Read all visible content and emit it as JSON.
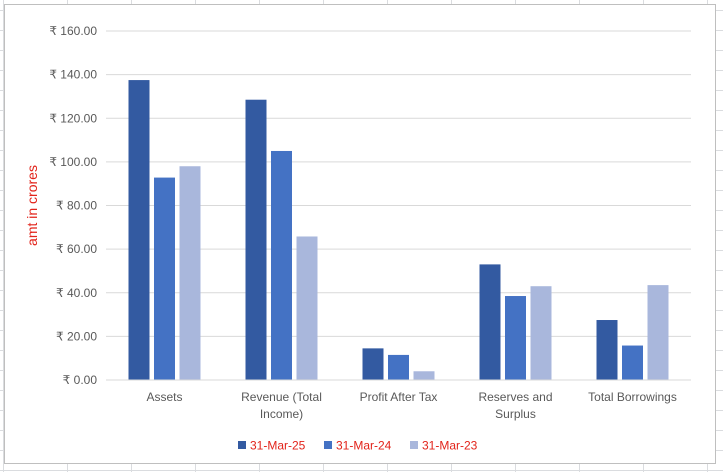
{
  "chart_data": {
    "type": "bar",
    "title": "",
    "xlabel": "",
    "ylabel": "amt in crores",
    "ylim": [
      0,
      160
    ],
    "y_ticks": [
      "₹ 0.00",
      "₹ 20.00",
      "₹ 40.00",
      "₹ 60.00",
      "₹ 80.00",
      "₹ 100.00",
      "₹ 120.00",
      "₹ 140.00",
      "₹ 160.00"
    ],
    "categories": [
      [
        "Assets"
      ],
      [
        "Revenue (Total",
        "Income)"
      ],
      [
        "Profit After Tax"
      ],
      [
        "Reserves and",
        "Surplus"
      ],
      [
        "Total Borrowings"
      ]
    ],
    "series": [
      {
        "name": "31-Mar-25",
        "color": "#335aa1",
        "values": [
          137.5,
          128.5,
          14.5,
          53.0,
          27.5
        ]
      },
      {
        "name": "31-Mar-24",
        "color": "#4472c4",
        "values": [
          92.8,
          105.0,
          11.5,
          38.5,
          15.8
        ]
      },
      {
        "name": "31-Mar-23",
        "color": "#a9b7dc",
        "values": [
          98.0,
          65.8,
          4.0,
          43.0,
          43.5
        ]
      }
    ],
    "grid": true,
    "legend_position": "bottom",
    "ylabel_color": "#e2231a",
    "legend_text_color": "#e2231a"
  }
}
